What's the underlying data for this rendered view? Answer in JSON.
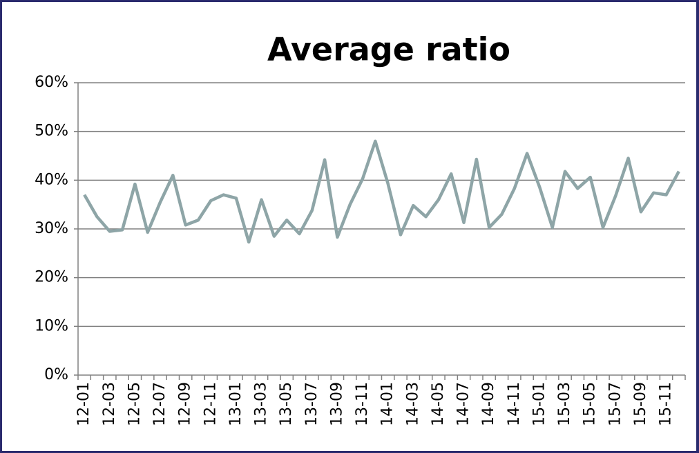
{
  "chart_data": {
    "type": "line",
    "title": "Average ratio",
    "categories": [
      "12-01",
      null,
      "12-03",
      null,
      "12-05",
      null,
      "12-07",
      null,
      "12-09",
      null,
      "12-11",
      null,
      "13-01",
      null,
      "13-03",
      null,
      "13-05",
      null,
      "13-07",
      null,
      "13-09",
      null,
      "13-11",
      null,
      "14-01",
      null,
      "14-03",
      null,
      "14-05",
      null,
      "14-07",
      null,
      "14-09",
      null,
      "14-11",
      null,
      "15-01",
      null,
      "15-03",
      null,
      "15-05",
      null,
      "15-07",
      null,
      "15-09",
      null,
      "15-11",
      null
    ],
    "values": [
      37,
      32.5,
      29.5,
      29.8,
      39.2,
      29.3,
      35.5,
      41,
      30.8,
      31.8,
      35.8,
      37,
      36.3,
      27.3,
      36,
      28.5,
      31.8,
      29,
      33.8,
      44.2,
      28.3,
      35,
      40.3,
      48,
      39.3,
      28.8,
      34.8,
      32.5,
      36,
      41.3,
      31.3,
      44.3,
      30.3,
      33,
      38.3,
      45.5,
      38.5,
      30.3,
      41.8,
      38.3,
      40.6,
      30.3,
      36.8,
      44.5,
      33.5,
      37.4,
      37,
      41.8
    ],
    "color": "#8ea5a7",
    "ylim": [
      0,
      60
    ],
    "yticks": [
      {
        "value": 0,
        "label": "0%"
      },
      {
        "value": 10,
        "label": "10%"
      },
      {
        "value": 20,
        "label": "20%"
      },
      {
        "value": 30,
        "label": "30%"
      },
      {
        "value": 40,
        "label": "40%"
      },
      {
        "value": 50,
        "label": "50%"
      },
      {
        "value": 60,
        "label": "60%"
      }
    ],
    "grid": true
  }
}
